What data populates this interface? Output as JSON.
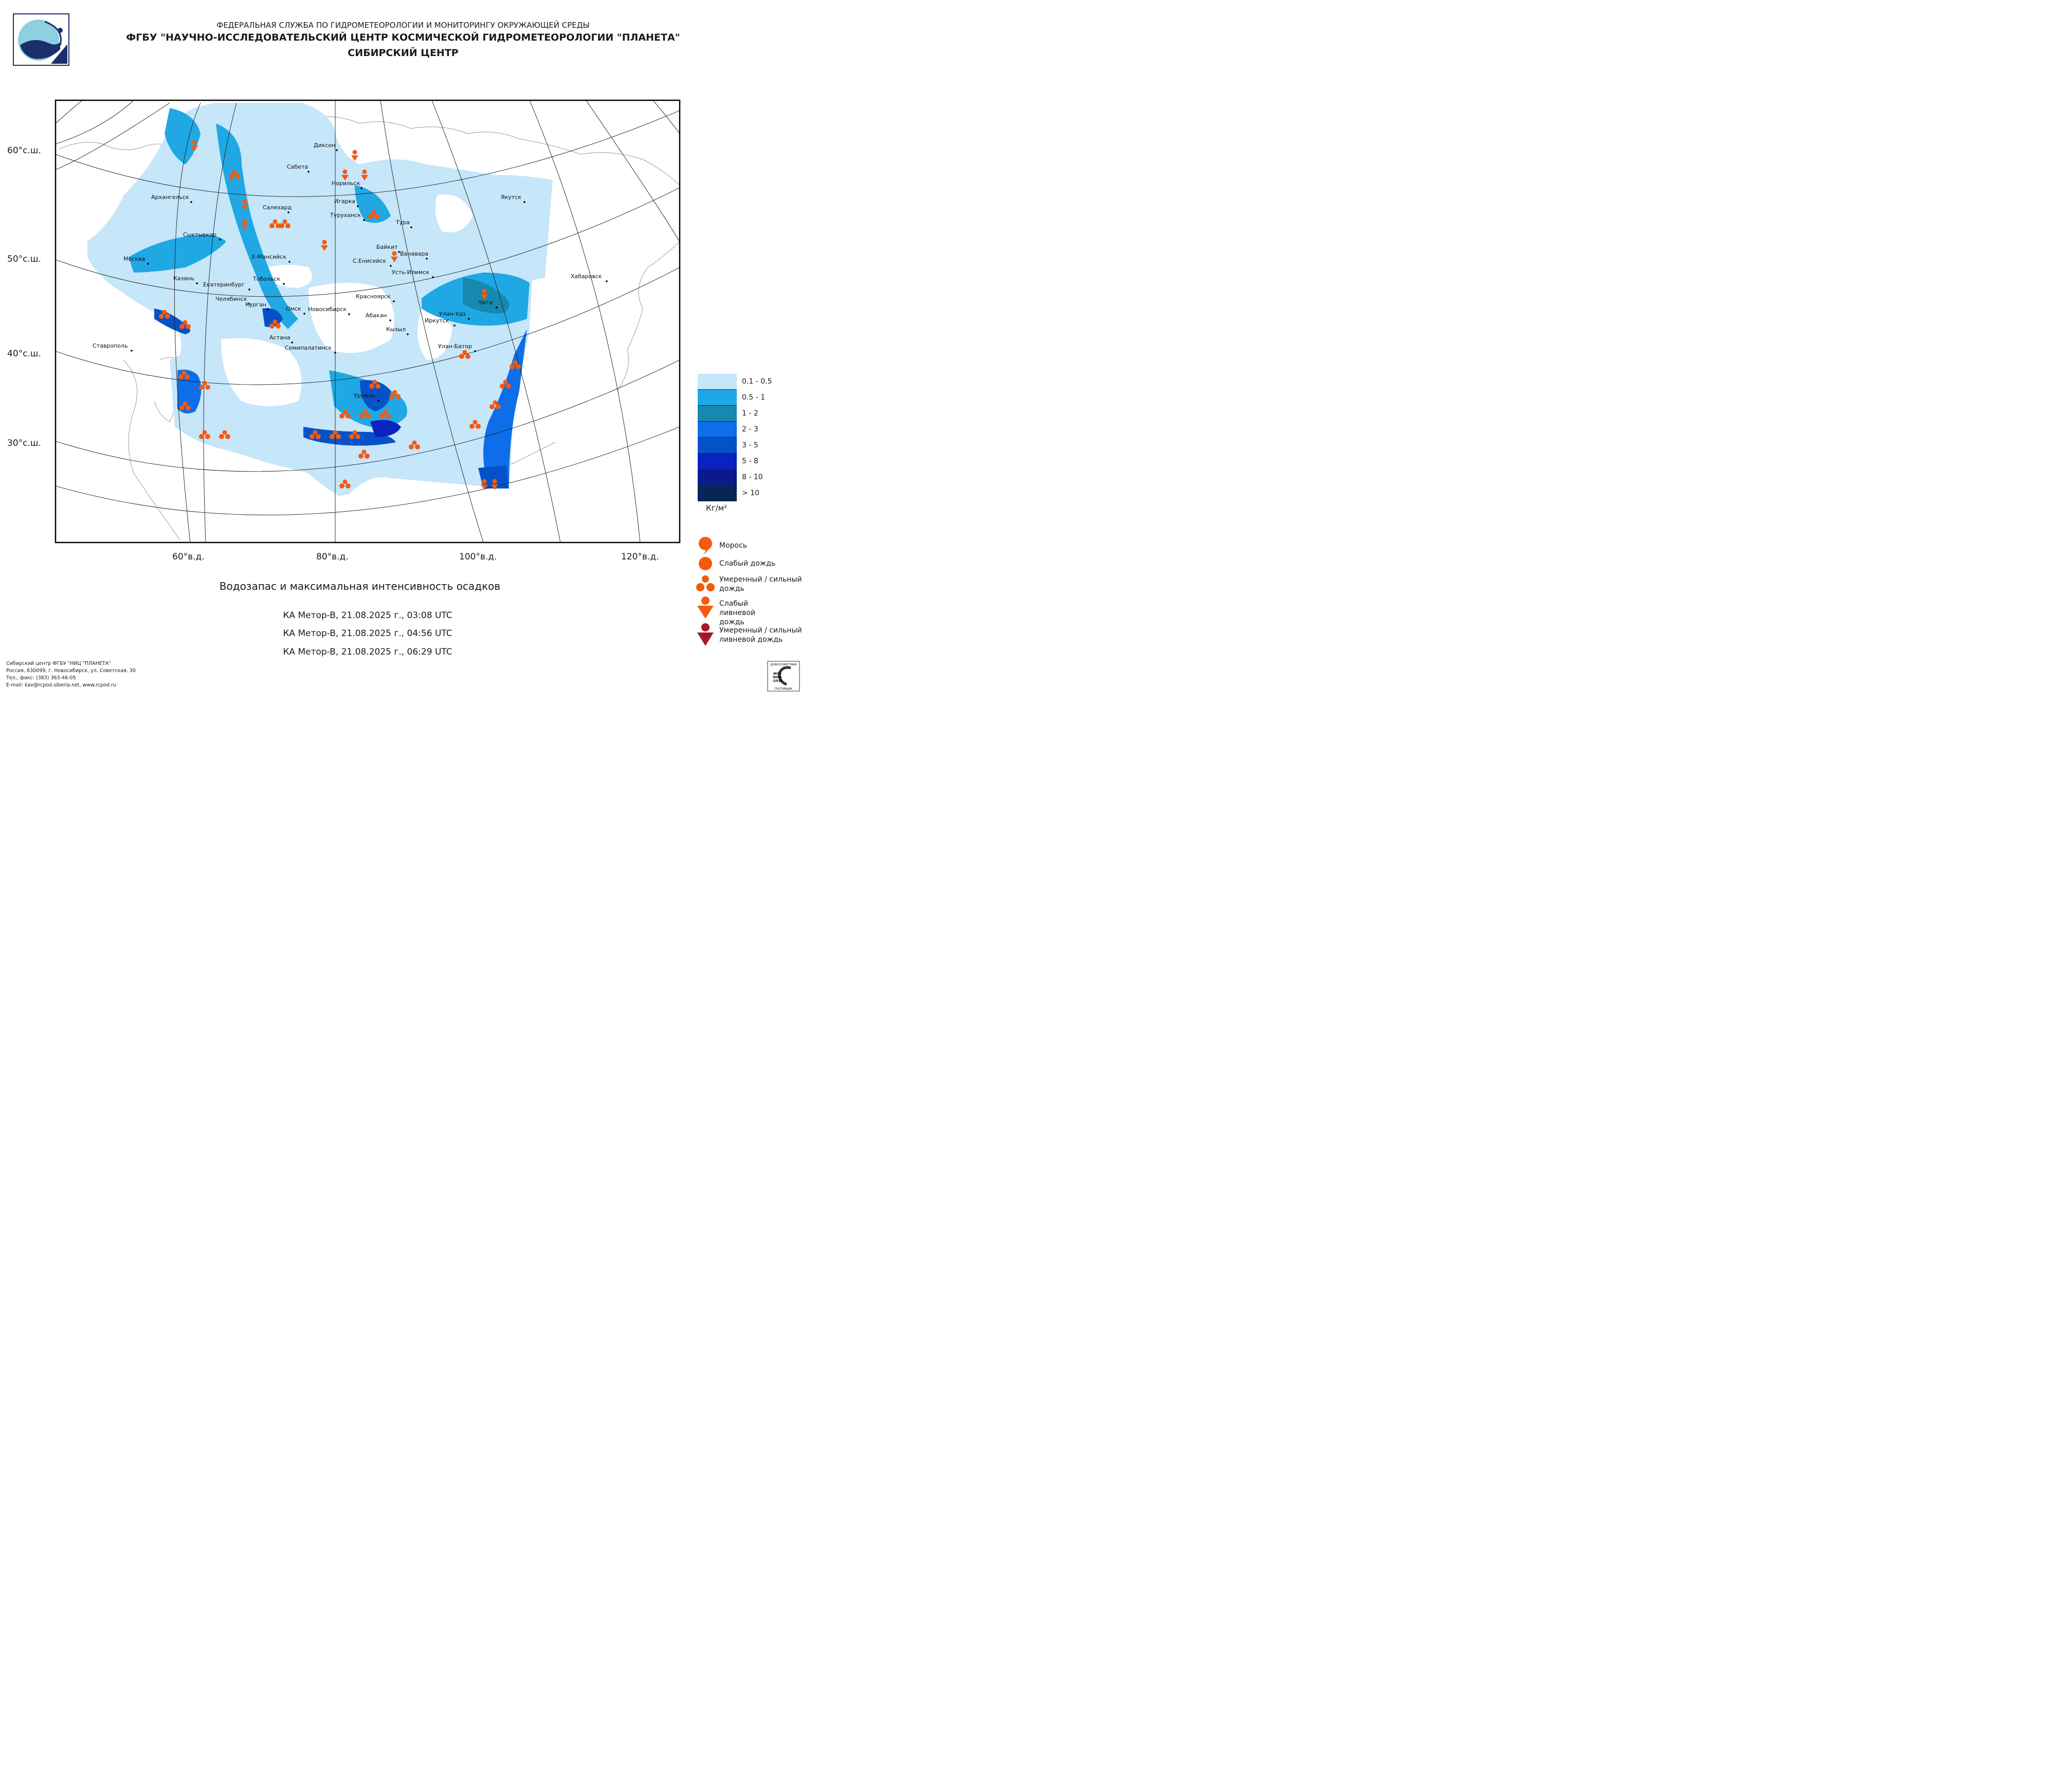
{
  "header": {
    "line1": "ФЕДЕРАЛЬНАЯ СЛУЖБА ПО ГИДРОМЕТЕОРОЛОГИИ И МОНИТОРИНГУ ОКРУЖАЮЩЕЙ СРЕДЫ",
    "line2": "ФГБУ \"НАУЧНО-ИССЛЕДОВАТЕЛЬСКИЙ ЦЕНТР КОСМИЧЕСКОЙ ГИДРОМЕТЕОРОЛОГИИ \"ПЛАНЕТА\"",
    "line3": "СИБИРСКИЙ ЦЕНТР"
  },
  "map": {
    "lat_labels": [
      "60°с.ш.",
      "50°с.ш.",
      "40°с.ш.",
      "30°с.ш."
    ],
    "lon_labels": [
      "60°в.д.",
      "80°в.д.",
      "100°в.д.",
      "120°в.д."
    ],
    "cities": [
      {
        "name": "Диксон"
      },
      {
        "name": "Сабета"
      },
      {
        "name": "Норильск"
      },
      {
        "name": "Архангельск"
      },
      {
        "name": "Игарка"
      },
      {
        "name": "Салехард"
      },
      {
        "name": "Туруханск"
      },
      {
        "name": "Тура"
      },
      {
        "name": "Якутск"
      },
      {
        "name": "Сыктывкар"
      },
      {
        "name": "Байкит"
      },
      {
        "name": "Ванавара"
      },
      {
        "name": "Москва"
      },
      {
        "name": "Х-Мансийск"
      },
      {
        "name": "С.Енисейск"
      },
      {
        "name": "Усть-Илимск"
      },
      {
        "name": "Хабаровск"
      },
      {
        "name": "Казань"
      },
      {
        "name": "Тобольск"
      },
      {
        "name": "Екатеринбург"
      },
      {
        "name": "Челябинск"
      },
      {
        "name": "Красноярск"
      },
      {
        "name": "Чита"
      },
      {
        "name": "Курган"
      },
      {
        "name": "Омск"
      },
      {
        "name": "Новосибирск"
      },
      {
        "name": "Улан-Удэ"
      },
      {
        "name": "Абакан"
      },
      {
        "name": "Иркутск"
      },
      {
        "name": "Кызыл"
      },
      {
        "name": "Астана"
      },
      {
        "name": "Ставрополь"
      },
      {
        "name": "Семипалатинск"
      },
      {
        "name": "Улан-Батор"
      },
      {
        "name": "Урумчи"
      }
    ]
  },
  "caption": "Водозапас и максимальная интенсивность осадков",
  "passes": [
    "КА Meтop-B, 21.08.2025 г., 03:08 UTC",
    "КА Meтop-B, 21.08.2025 г., 04:56 UTC",
    "КА Meтop-B, 21.08.2025 г., 06:29 UTC"
  ],
  "legend": {
    "classes": [
      {
        "label": "0.1 - 0.5",
        "color": "#c6e6fa"
      },
      {
        "label": "0.5 - 1",
        "color": "#20a8e4"
      },
      {
        "label": "1 - 2",
        "color": "#1788b0"
      },
      {
        "label": "2 - 3",
        "color": "#0e6de8"
      },
      {
        "label": "3 - 5",
        "color": "#0552c8"
      },
      {
        "label": "5 - 8",
        "color": "#0a22c0"
      },
      {
        "label": "8 - 10",
        "color": "#0b1a8a"
      },
      {
        "label": "> 10",
        "color": "#072556"
      }
    ],
    "unit": "Кг/м²",
    "symbols": [
      {
        "label": "Морось",
        "icon": "drizzle-icon",
        "color": "#f55a0f"
      },
      {
        "label": "Слабый дождь",
        "icon": "light-rain-icon",
        "color": "#f55a0f"
      },
      {
        "label": "Умеренный / сильный дождь",
        "icon": "moderate-rain-icon",
        "color": "#f55a0f"
      },
      {
        "label": "Слабый ливневой дождь",
        "icon": "light-shower-icon",
        "color": "#f55a0f"
      },
      {
        "label": "Умеренный / сильный ливневой дождь",
        "icon": "heavy-shower-icon",
        "color": "#a8162a"
      }
    ]
  },
  "footer": {
    "line1": "Сибирский центр ФГБУ \"НИЦ \"ПЛАНЕТА\"",
    "line2": "Россия, 630099, г. Новосибирск, ул. Советская, 30",
    "line3": "Тел., факс: (383) 363-46-05",
    "line4": "E-mail: kav@rcpod.siberia.net, www.rcpod.ru"
  },
  "iso_badge": {
    "text_top": "ДОБРОСОВЕСТНЫЙ",
    "text_main": "ИСО 9001 -2015",
    "text_bottom": "ПОСТАВЩИК"
  }
}
